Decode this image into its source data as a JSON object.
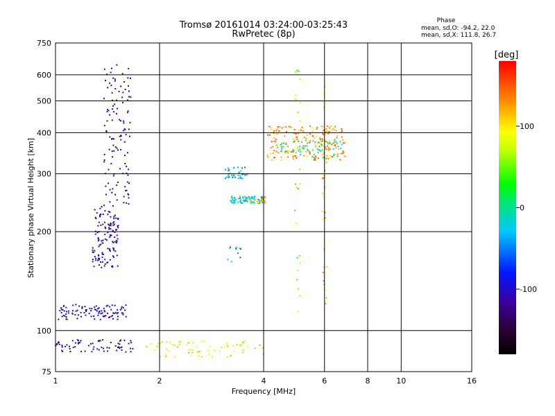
{
  "chart_data": {
    "type": "scatter",
    "title": "Tromsø 20161014 03:24:00-03:25:43",
    "subtitle": "RwPretec (8p)",
    "xlabel": "Frequency [MHz]",
    "ylabel": "Stationary phase Virtual Height [km]",
    "xscale": "log",
    "yscale": "log",
    "xlim": [
      1,
      16
    ],
    "ylim": [
      75,
      750
    ],
    "xticks": [
      1,
      2,
      4,
      6,
      8,
      10,
      16
    ],
    "xtick_labels": [
      "1",
      "2",
      "4",
      "6",
      "8",
      "10",
      "16"
    ],
    "yticks": [
      75,
      100,
      200,
      300,
      400,
      500,
      600,
      750
    ],
    "ytick_labels": [
      "75",
      "100",
      "200",
      "300",
      "400",
      "500",
      "600",
      "750"
    ],
    "grid": true,
    "stats": {
      "heading": "Phase",
      "line1": "mean, sd,O: -94.2, 22.0",
      "line2": "mean, sd,X: 111.8, 26.7"
    },
    "colorbar": {
      "label": "[deg]",
      "range": [
        -180,
        180
      ],
      "ticks": [
        100,
        0,
        -100
      ],
      "tick_labels": [
        "100",
        "0",
        "-100"
      ]
    },
    "clusters": [
      {
        "name": "F-trace lower",
        "f": [
          1.28,
          1.52
        ],
        "h": [
          155,
          240
        ],
        "phase": -110,
        "n": 130
      },
      {
        "name": "F-trace upper",
        "f": [
          1.38,
          1.65
        ],
        "h": [
          240,
          650
        ],
        "phase": -115,
        "n": 120
      },
      {
        "name": "E-layer blue",
        "f": [
          1.02,
          1.62
        ],
        "h": [
          108,
          120
        ],
        "phase": -105,
        "n": 100
      },
      {
        "name": "low echoes blue",
        "f": [
          1.0,
          1.7
        ],
        "h": [
          86,
          94
        ],
        "phase": -110,
        "n": 70
      },
      {
        "name": "low echoes mixed",
        "f": [
          1.8,
          4.0
        ],
        "h": [
          83,
          93
        ],
        "phase": 95,
        "n": 70
      },
      {
        "name": "cluster 3.3 MHz",
        "f": [
          3.1,
          3.6
        ],
        "h": [
          290,
          315
        ],
        "phase": -30,
        "n": 40
      },
      {
        "name": "trace 250 km",
        "f": [
          3.2,
          4.0
        ],
        "h": [
          244,
          256
        ],
        "phase": -20,
        "n": 80
      },
      {
        "name": "trace 250 km orange",
        "f": [
          3.6,
          4.1
        ],
        "h": [
          244,
          256
        ],
        "phase": 120,
        "n": 25
      },
      {
        "name": "X-trace",
        "f": [
          4.1,
          6.9
        ],
        "h": [
          330,
          420
        ],
        "phase": 130,
        "n": 200
      },
      {
        "name": "X-trace mixed",
        "f": [
          4.3,
          6.8
        ],
        "h": [
          335,
          380
        ],
        "phase": 10,
        "n": 60
      },
      {
        "name": "cluster 3.2 MHz",
        "f": [
          3.15,
          3.45
        ],
        "h": [
          160,
          180
        ],
        "phase": -40,
        "n": 10
      },
      {
        "name": "column 5 MHz",
        "f": [
          4.9,
          5.1
        ],
        "h": [
          105,
          650
        ],
        "phase": 60,
        "n": 30
      },
      {
        "name": "column 6 MHz",
        "f": [
          5.9,
          6.1
        ],
        "h": [
          120,
          560
        ],
        "phase": 120,
        "n": 30
      }
    ]
  }
}
